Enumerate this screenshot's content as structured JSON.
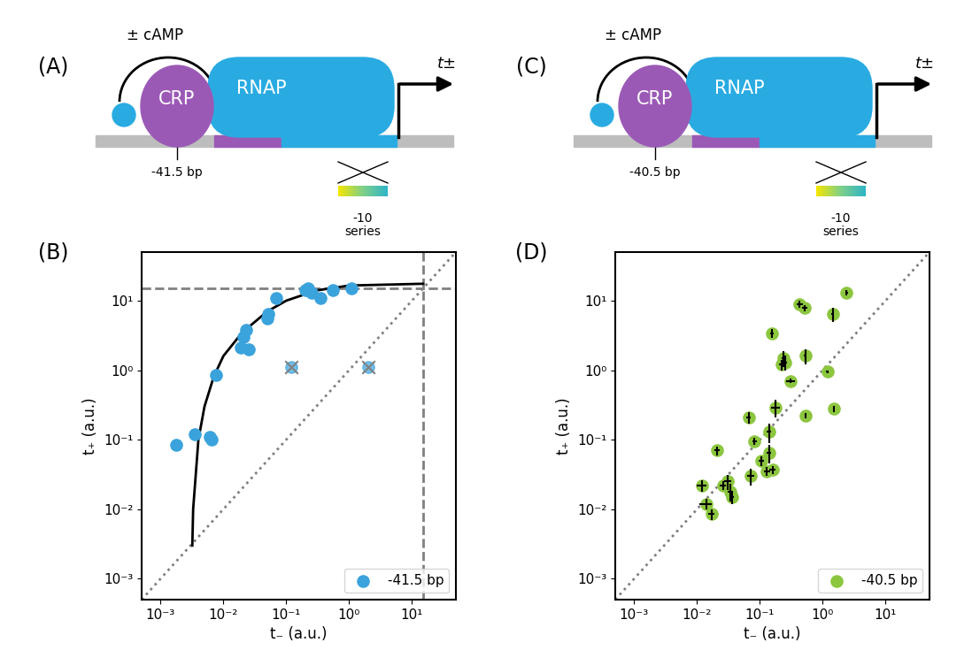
{
  "diagrams": [
    {
      "label": "(A)",
      "ligand": "± cAMP",
      "activator": "CRP",
      "polymerase": "RNAP",
      "site": "-41.5 bp",
      "element": "-10\nseries",
      "output": "t±"
    },
    {
      "label": "(C)",
      "ligand": "± cAMP",
      "activator": "CRP",
      "polymerase": "RNAP",
      "site": "-40.5 bp",
      "element": "-10\nseries",
      "output": "t±"
    }
  ],
  "chart_data": [
    {
      "label": "(B)",
      "type": "scatter",
      "log": true,
      "xlabel": "t₋ (a.u.)",
      "ylabel": "t₊ (a.u.)",
      "xlim": [
        0.0005,
        50
      ],
      "ylim": [
        0.0005,
        50
      ],
      "xticks": [
        {
          "value": 0.001,
          "label": "10⁻³"
        },
        {
          "value": 0.01,
          "label": "10⁻²"
        },
        {
          "value": 0.1,
          "label": "10⁻¹"
        },
        {
          "value": 1,
          "label": "10⁰"
        },
        {
          "value": 10,
          "label": "10¹"
        }
      ],
      "yticks": [
        {
          "value": 0.001,
          "label": "10⁻³"
        },
        {
          "value": 0.01,
          "label": "10⁻²"
        },
        {
          "value": 0.1,
          "label": "10⁻¹"
        },
        {
          "value": 1,
          "label": "10⁰"
        },
        {
          "value": 10,
          "label": "10¹"
        }
      ],
      "legend": "lower right",
      "series": [
        {
          "name": "-41.5 bp",
          "color": "#3ba3dc",
          "marker": "o",
          "x": [
            0.0018,
            0.0035,
            0.006,
            0.0065,
            0.0075,
            0.019,
            0.021,
            0.023,
            0.025,
            0.05,
            0.052,
            0.07,
            0.2,
            0.22,
            0.25,
            0.35,
            0.55,
            1.1
          ],
          "values": [
            0.085,
            0.12,
            0.11,
            0.1,
            0.85,
            2.1,
            3.0,
            3.8,
            2.0,
            5.5,
            6.5,
            11,
            14,
            15,
            13,
            11,
            14,
            15
          ]
        }
      ],
      "excluded": {
        "x": [
          0.12,
          2.0
        ],
        "values": [
          1.1,
          1.1
        ]
      },
      "fit": {
        "x": [
          0.0032,
          0.0033,
          0.004,
          0.005,
          0.007,
          0.01,
          0.02,
          0.05,
          0.1,
          0.3,
          1,
          15
        ],
        "values": [
          0.003,
          0.01,
          0.1,
          0.3,
          0.8,
          1.6,
          3.5,
          7,
          10,
          14,
          16.5,
          17.5
        ]
      },
      "saturation": 15
    },
    {
      "label": "(D)",
      "type": "scatter",
      "log": true,
      "xlabel": "t₋ (a.u.)",
      "ylabel": "t₊ (a.u.)",
      "xlim": [
        0.0005,
        50
      ],
      "ylim": [
        0.0005,
        50
      ],
      "xticks": [
        {
          "value": 0.001,
          "label": "10⁻³"
        },
        {
          "value": 0.01,
          "label": "10⁻²"
        },
        {
          "value": 0.1,
          "label": "10⁻¹"
        },
        {
          "value": 1,
          "label": "10⁰"
        },
        {
          "value": 10,
          "label": "10¹"
        }
      ],
      "yticks": [
        {
          "value": 0.001,
          "label": "10⁻³"
        },
        {
          "value": 0.01,
          "label": "10⁻²"
        },
        {
          "value": 0.1,
          "label": "10⁻¹"
        },
        {
          "value": 1,
          "label": "10⁰"
        },
        {
          "value": 10,
          "label": "10¹"
        }
      ],
      "legend": "lower right",
      "series": [
        {
          "name": "-40.5 bp",
          "color": "#8cc63f",
          "marker": "o",
          "x": [
            0.012,
            0.014,
            0.017,
            0.021,
            0.026,
            0.031,
            0.034,
            0.036,
            0.066,
            0.072,
            0.082,
            0.105,
            0.13,
            0.14,
            0.14,
            0.16,
            0.155,
            0.18,
            0.22,
            0.24,
            0.25,
            0.31,
            0.43,
            0.52,
            0.53,
            0.53,
            1.2,
            1.45,
            1.5,
            2.4
          ],
          "values": [
            0.022,
            0.012,
            0.0085,
            0.07,
            0.022,
            0.025,
            0.018,
            0.015,
            0.21,
            0.03,
            0.095,
            0.05,
            0.035,
            0.065,
            0.13,
            0.037,
            3.4,
            0.29,
            1.2,
            1.5,
            1.3,
            0.7,
            9.0,
            7.8,
            0.22,
            1.6,
            0.95,
            6.5,
            0.28,
            13
          ],
          "x_err": [
            0.002,
            0.003,
            0.002,
            0.002,
            0.003,
            0.004,
            0.003,
            0.003,
            0.006,
            0.01,
            0.007,
            0.01,
            0.015,
            0.01,
            0.01,
            0.02,
            0.01,
            0.03,
            0.02,
            0.02,
            0.02,
            0.05,
            0.05,
            0.05,
            0.02,
            0.03,
            0.06,
            0.08,
            0.05,
            0.1
          ],
          "y_err": [
            0.004,
            0.002,
            0.0015,
            0.01,
            0.003,
            0.006,
            0.005,
            0.003,
            0.04,
            0.008,
            0.01,
            0.008,
            0.005,
            0.02,
            0.04,
            0.005,
            0.5,
            0.08,
            0.2,
            0.4,
            0.3,
            0.05,
            1.0,
            0.8,
            0.02,
            0.4,
            0.05,
            1.5,
            0.03,
            1.0
          ]
        }
      ]
    }
  ]
}
